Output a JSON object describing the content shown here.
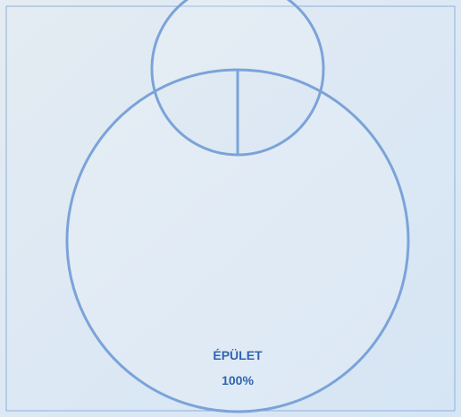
{
  "chart_data": {
    "type": "donut",
    "categories": [
      "ÉPÜLET"
    ],
    "values": [
      100
    ],
    "value_labels": [
      "100%"
    ],
    "color": "#7ba3d9"
  }
}
